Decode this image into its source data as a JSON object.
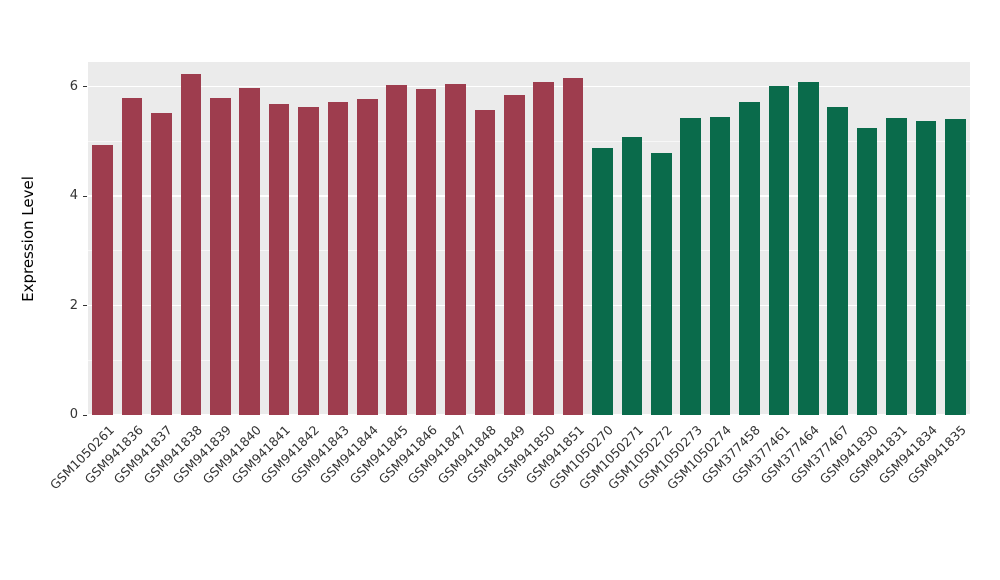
{
  "chart_data": {
    "type": "bar",
    "title": "",
    "xlabel": "",
    "ylabel": "Expression Level",
    "ylim": [
      0,
      6.45
    ],
    "yticks": [
      0,
      2,
      4,
      6
    ],
    "minor_gridlines": [
      1,
      3,
      5
    ],
    "grid": true,
    "legend_position": "none",
    "panel_bg": "#EBEBEB",
    "grid_color": "#FFFFFF",
    "text_color": "#333333",
    "categories": [
      "GSM1050261",
      "GSM941836",
      "GSM941837",
      "GSM941838",
      "GSM941839",
      "GSM941840",
      "GSM941841",
      "GSM941842",
      "GSM941843",
      "GSM941844",
      "GSM941845",
      "GSM941846",
      "GSM941847",
      "GSM941848",
      "GSM941849",
      "GSM941850",
      "GSM941851",
      "GSM1050270",
      "GSM1050271",
      "GSM1050272",
      "GSM1050273",
      "GSM1050274",
      "GSM377458",
      "GSM377461",
      "GSM377464",
      "GSM377467",
      "GSM941830",
      "GSM941831",
      "GSM941834",
      "GSM941835"
    ],
    "values": [
      4.93,
      5.8,
      5.52,
      6.23,
      5.8,
      5.97,
      5.68,
      5.62,
      5.72,
      5.77,
      6.03,
      5.95,
      6.05,
      5.57,
      5.85,
      6.08,
      6.15,
      4.88,
      5.08,
      4.78,
      5.43,
      5.44,
      5.72,
      6.02,
      6.08,
      5.63,
      5.25,
      5.43,
      5.38,
      5.4
    ],
    "groups": [
      "maroon",
      "maroon",
      "maroon",
      "maroon",
      "maroon",
      "maroon",
      "maroon",
      "maroon",
      "maroon",
      "maroon",
      "maroon",
      "maroon",
      "maroon",
      "maroon",
      "maroon",
      "maroon",
      "maroon",
      "green",
      "green",
      "green",
      "green",
      "green",
      "green",
      "green",
      "green",
      "green",
      "green",
      "green",
      "green",
      "green"
    ],
    "group_colors": {
      "maroon": "#9E3D4E",
      "green": "#0A6B4B"
    }
  }
}
